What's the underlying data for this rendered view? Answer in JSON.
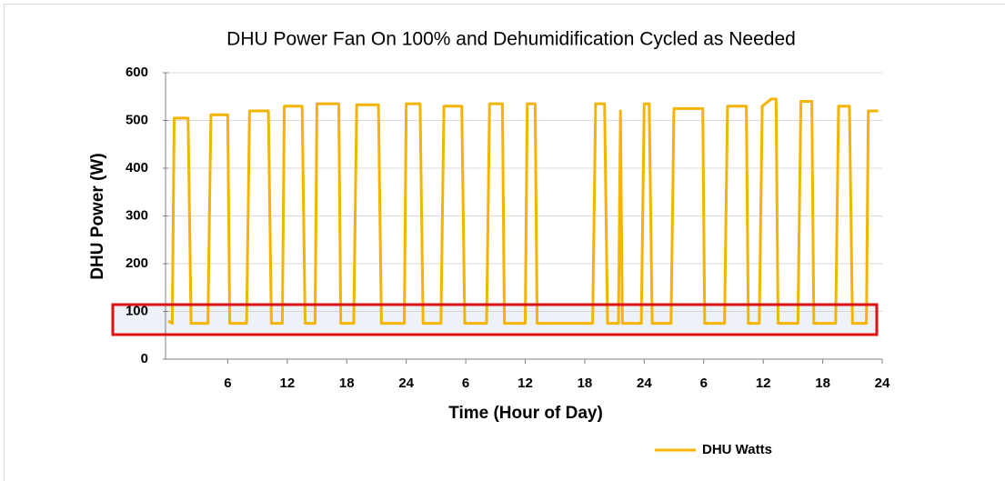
{
  "chart_data": {
    "type": "line",
    "title": "DHU Power Fan On 100% and Dehumidification  Cycled as Needed",
    "x_label": "Time (Hour of Day)",
    "y_label": "DHU Power (W)",
    "x": [
      0,
      0.4,
      0.6,
      2.0,
      2.3,
      4.0,
      4.3,
      6.0,
      6.2,
      7.9,
      8.2,
      10.1,
      10.4,
      11.5,
      11.7,
      13.5,
      13.8,
      14.8,
      15.0,
      17.2,
      17.4,
      18.7,
      19.0,
      21.2,
      21.5,
      23.8,
      24.0,
      25.4,
      25.7,
      27.5,
      27.8,
      29.6,
      29.9,
      32.1,
      32.4,
      33.7,
      33.9,
      36.0,
      36.2,
      37.0,
      37.2,
      42.8,
      43.1,
      44.0,
      44.3,
      45.4,
      45.6,
      45.8,
      47.7,
      48.0,
      48.5,
      48.8,
      50.7,
      51.0,
      53.9,
      54.1,
      56.1,
      56.4,
      58.3,
      58.5,
      59.6,
      59.9,
      60.8,
      61.3,
      61.5,
      63.5,
      63.8,
      64.9,
      65.1,
      67.3,
      67.6,
      68.7,
      69.0,
      70.4,
      70.6,
      71.6
    ],
    "series": [
      {
        "name": "DHU Watts",
        "color": "#f5b400",
        "values": [
          80,
          75,
          505,
          505,
          75,
          75,
          512,
          512,
          75,
          75,
          520,
          520,
          75,
          75,
          530,
          530,
          75,
          75,
          535,
          535,
          75,
          75,
          533,
          533,
          75,
          75,
          535,
          535,
          75,
          75,
          530,
          530,
          75,
          75,
          535,
          535,
          75,
          75,
          535,
          535,
          75,
          75,
          535,
          535,
          75,
          75,
          520,
          75,
          75,
          535,
          535,
          75,
          75,
          525,
          525,
          75,
          75,
          530,
          530,
          75,
          75,
          530,
          545,
          545,
          75,
          75,
          540,
          540,
          75,
          75,
          530,
          530,
          75,
          75,
          520,
          520
        ]
      }
    ],
    "xlim": [
      0,
      72
    ],
    "xticks": [
      6,
      12,
      18,
      24,
      {
        "value": 30,
        "label": "6"
      },
      {
        "value": 36,
        "label": "12"
      },
      {
        "value": 42,
        "label": "18"
      },
      {
        "value": 48,
        "label": "24"
      },
      {
        "value": 54,
        "label": "6"
      },
      {
        "value": 60,
        "label": "12"
      },
      {
        "value": 66,
        "label": "18"
      },
      {
        "value": 72,
        "label": "24"
      }
    ],
    "ylim": [
      0,
      600
    ],
    "yticks": [
      0,
      100,
      200,
      300,
      400,
      500,
      600
    ],
    "grid": true,
    "legend": "bottom-right"
  }
}
